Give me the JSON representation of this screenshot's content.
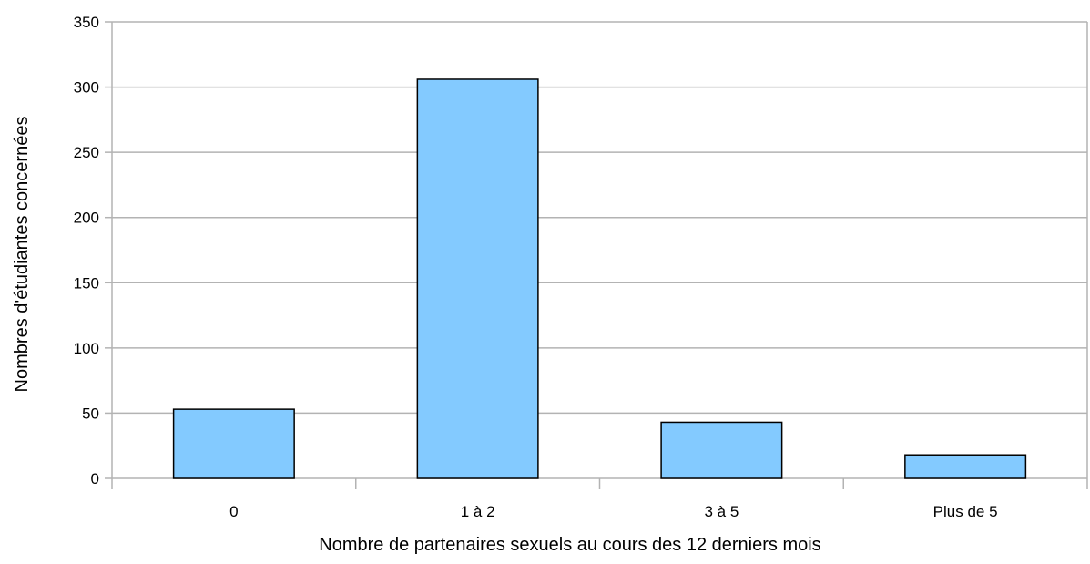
{
  "chart_data": {
    "type": "bar",
    "title": "",
    "xlabel": "Nombre de partenaires sexuels au cours des 12 derniers mois",
    "ylabel": "Nombres d'étudiantes concernées",
    "categories": [
      "0",
      "1 à 2",
      "3 à 5",
      "Plus de 5"
    ],
    "values": [
      53,
      306,
      43,
      18
    ],
    "ylim": [
      0,
      350
    ],
    "yticks": [
      0,
      50,
      100,
      150,
      200,
      250,
      300,
      350
    ],
    "grid": true,
    "legend": "none",
    "bar_color": "#83caff",
    "bar_edge_color": "#000000",
    "grid_color": "#b3b3b3"
  }
}
